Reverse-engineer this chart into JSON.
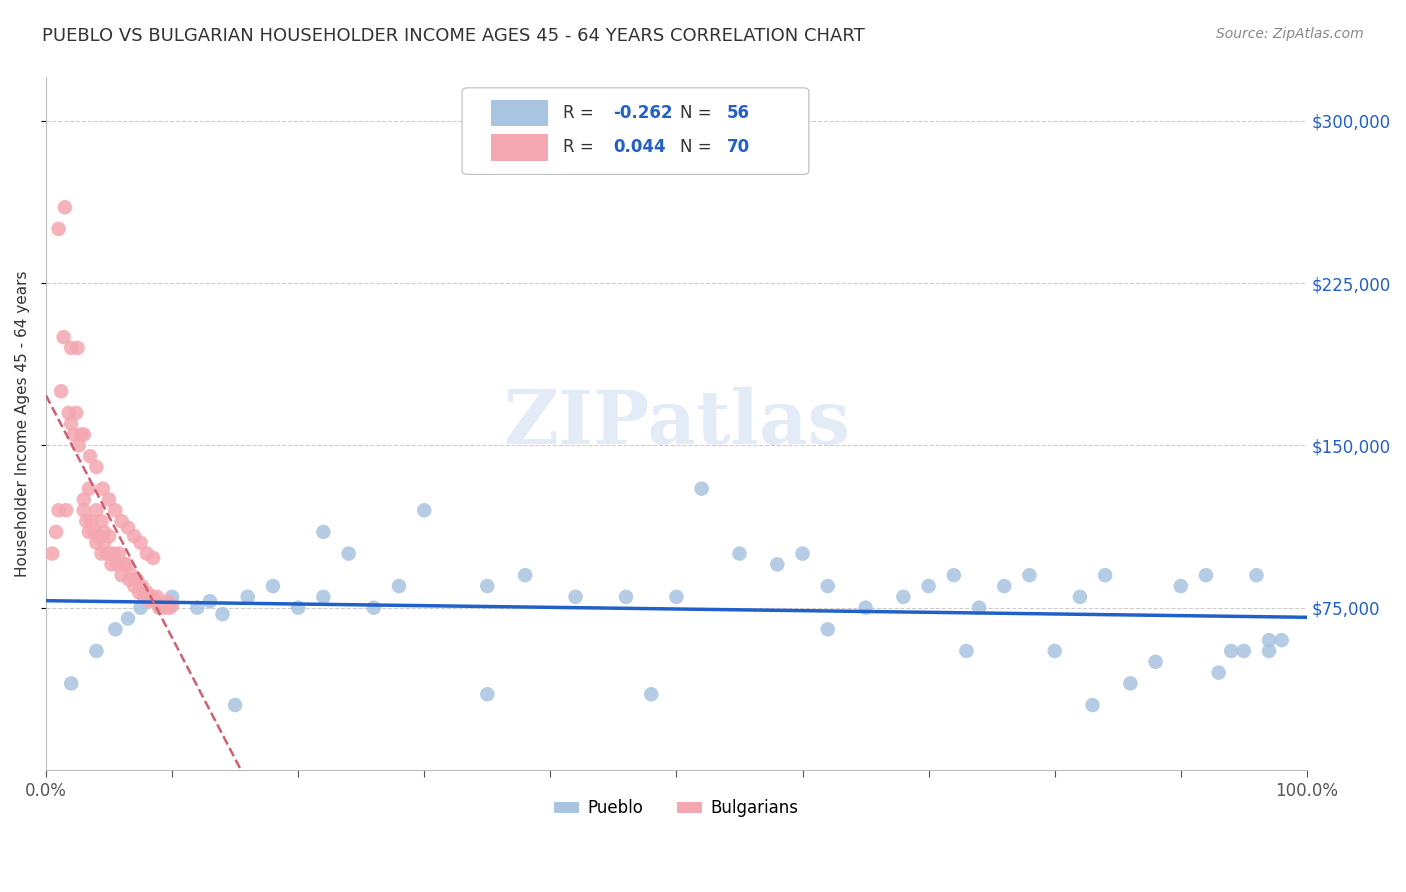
{
  "title": "PUEBLO VS BULGARIAN HOUSEHOLDER INCOME AGES 45 - 64 YEARS CORRELATION CHART",
  "source": "Source: ZipAtlas.com",
  "ylabel": "Householder Income Ages 45 - 64 years",
  "xlim": [
    0,
    1.0
  ],
  "ylim": [
    0,
    320000
  ],
  "ytick_labels": [
    "$75,000",
    "$150,000",
    "$225,000",
    "$300,000"
  ],
  "ytick_values": [
    75000,
    150000,
    225000,
    300000
  ],
  "pueblo_R": -0.262,
  "pueblo_N": 56,
  "bulgarian_R": 0.044,
  "bulgarian_N": 70,
  "pueblo_color": "#a8c4e0",
  "bulgarian_color": "#f4a7b0",
  "pueblo_line_color": "#2060c8",
  "bulgarian_line_color": "#d06070",
  "pueblo_x": [
    0.02,
    0.04,
    0.055,
    0.065,
    0.075,
    0.09,
    0.1,
    0.12,
    0.13,
    0.14,
    0.16,
    0.18,
    0.2,
    0.22,
    0.22,
    0.24,
    0.26,
    0.28,
    0.3,
    0.35,
    0.38,
    0.42,
    0.46,
    0.5,
    0.52,
    0.55,
    0.58,
    0.6,
    0.62,
    0.65,
    0.68,
    0.7,
    0.72,
    0.74,
    0.76,
    0.78,
    0.8,
    0.82,
    0.84,
    0.86,
    0.88,
    0.9,
    0.92,
    0.94,
    0.95,
    0.96,
    0.97,
    0.98,
    0.15,
    0.35,
    0.48,
    0.62,
    0.73,
    0.83,
    0.93,
    0.97
  ],
  "pueblo_y": [
    40000,
    55000,
    65000,
    70000,
    75000,
    75000,
    80000,
    75000,
    78000,
    72000,
    80000,
    85000,
    75000,
    80000,
    110000,
    100000,
    75000,
    85000,
    120000,
    85000,
    90000,
    80000,
    80000,
    80000,
    130000,
    100000,
    95000,
    100000,
    85000,
    75000,
    80000,
    85000,
    90000,
    75000,
    85000,
    90000,
    55000,
    80000,
    90000,
    40000,
    50000,
    85000,
    90000,
    55000,
    55000,
    90000,
    55000,
    60000,
    30000,
    35000,
    35000,
    65000,
    55000,
    30000,
    45000,
    60000
  ],
  "bulgarian_x": [
    0.005,
    0.008,
    0.01,
    0.012,
    0.014,
    0.016,
    0.018,
    0.02,
    0.022,
    0.024,
    0.026,
    0.028,
    0.03,
    0.03,
    0.032,
    0.034,
    0.034,
    0.036,
    0.038,
    0.04,
    0.04,
    0.042,
    0.044,
    0.044,
    0.046,
    0.046,
    0.048,
    0.05,
    0.05,
    0.052,
    0.054,
    0.056,
    0.058,
    0.06,
    0.062,
    0.064,
    0.066,
    0.068,
    0.07,
    0.072,
    0.074,
    0.076,
    0.078,
    0.08,
    0.082,
    0.084,
    0.086,
    0.088,
    0.09,
    0.092,
    0.094,
    0.096,
    0.098,
    0.1,
    0.01,
    0.015,
    0.02,
    0.025,
    0.03,
    0.035,
    0.04,
    0.045,
    0.05,
    0.055,
    0.06,
    0.065,
    0.07,
    0.075,
    0.08,
    0.085
  ],
  "bulgarian_y": [
    100000,
    110000,
    120000,
    175000,
    200000,
    120000,
    165000,
    160000,
    155000,
    165000,
    150000,
    155000,
    120000,
    125000,
    115000,
    110000,
    130000,
    115000,
    110000,
    105000,
    120000,
    108000,
    115000,
    100000,
    105000,
    110000,
    100000,
    100000,
    108000,
    95000,
    100000,
    95000,
    100000,
    90000,
    95000,
    95000,
    88000,
    90000,
    85000,
    88000,
    82000,
    85000,
    80000,
    82000,
    78000,
    80000,
    78000,
    80000,
    75000,
    76000,
    75000,
    78000,
    75000,
    76000,
    250000,
    260000,
    195000,
    195000,
    155000,
    145000,
    140000,
    130000,
    125000,
    120000,
    115000,
    112000,
    108000,
    105000,
    100000,
    98000
  ],
  "background_color": "#ffffff",
  "watermark": "ZIPatlas",
  "legend_pueblo_label": "Pueblo",
  "legend_bulgarian_label": "Bulgarians"
}
